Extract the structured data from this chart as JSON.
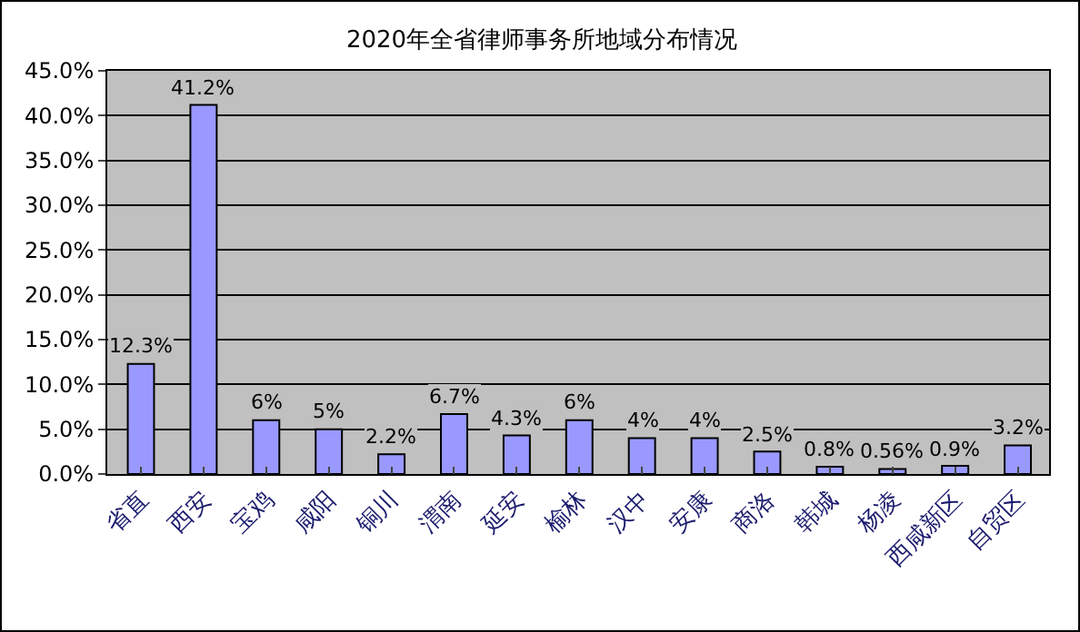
{
  "chart_data": {
    "type": "bar",
    "title": "2020年全省律师事务所地域分布情况",
    "categories": [
      "省直",
      "西安",
      "宝鸡",
      "咸阳",
      "铜川",
      "渭南",
      "延安",
      "榆林",
      "汉中",
      "安康",
      "商洛",
      "韩城",
      "杨凌",
      "西咸新区",
      "自贸区"
    ],
    "values": [
      12.3,
      41.2,
      6,
      5,
      2.2,
      6.7,
      4.3,
      6,
      4,
      4,
      2.5,
      0.8,
      0.56,
      0.9,
      3.2
    ],
    "value_labels": [
      "12.3%",
      "41.2%",
      "6%",
      "5%",
      "2.2%",
      "6.7%",
      "4.3%",
      "6%",
      "4%",
      "4%",
      "2.5%",
      "0.8%",
      "0.56%",
      "0.9%",
      "3.2%"
    ],
    "color": "#9999ff",
    "ylim": [
      0,
      45
    ],
    "yticks": [
      {
        "value": 0,
        "label": "0.0%"
      },
      {
        "value": 5,
        "label": "5.0%"
      },
      {
        "value": 10,
        "label": "10.0%"
      },
      {
        "value": 15,
        "label": "15.0%"
      },
      {
        "value": 20,
        "label": "20.0%"
      },
      {
        "value": 25,
        "label": "25.0%"
      },
      {
        "value": 30,
        "label": "30.0%"
      },
      {
        "value": 35,
        "label": "35.0%"
      },
      {
        "value": 40,
        "label": "40.0%"
      },
      {
        "value": 45,
        "label": "45.0%"
      }
    ],
    "grid": "y"
  }
}
